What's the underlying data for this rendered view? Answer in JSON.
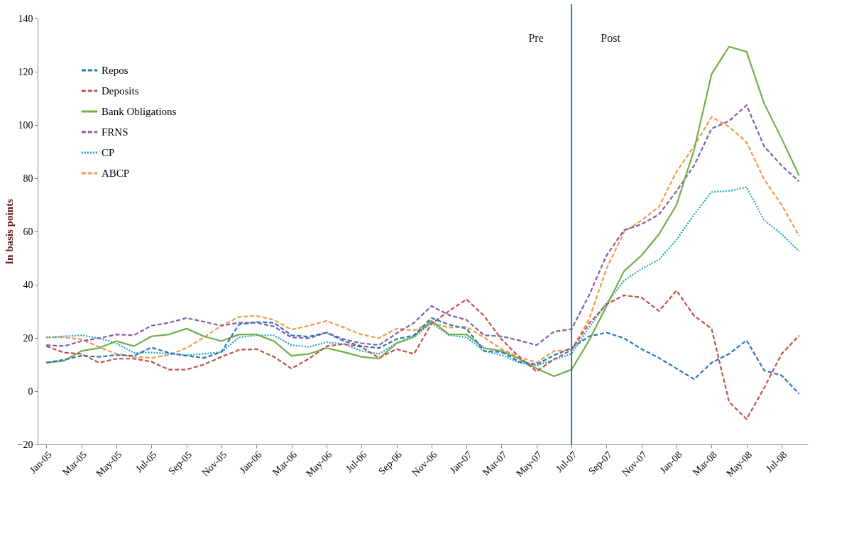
{
  "chart_data": {
    "type": "line",
    "ylabel": "In basis points",
    "categories": [
      "Jan-05",
      null,
      "Mar-05",
      null,
      "May-05",
      null,
      "Jul-05",
      null,
      "Sep-05",
      null,
      "Nov-05",
      null,
      "Jan-06",
      null,
      "Mar-06",
      null,
      "May-06",
      null,
      "Jul-06",
      null,
      "Sep-06",
      null,
      "Nov-06",
      null,
      "Jan-07",
      null,
      "Mar-07",
      null,
      "May-07",
      null,
      "Jul-07",
      null,
      "Sep-07",
      null,
      "Nov-07",
      null,
      "Jan-08",
      null,
      "Mar-08",
      null,
      "May-08",
      null,
      "Jul-08",
      null
    ],
    "series": [
      {
        "name": "Repos",
        "color": "#2e75b6",
        "line_style": "dashed",
        "values": [
          10.7,
          11.8,
          13.3,
          12.9,
          13.6,
          13.3,
          16.4,
          14.4,
          13.3,
          12.5,
          14.7,
          25,
          26,
          25.7,
          21,
          20.5,
          22,
          18.8,
          16.9,
          16.2,
          19.5,
          21,
          27.5,
          25,
          23.5,
          15.1,
          14.7,
          11.1,
          10,
          13.5,
          16.2,
          20.6,
          22,
          19.9,
          15.8,
          12.5,
          8.5,
          4.5,
          10.7,
          14,
          19.1,
          7.8,
          5.9,
          -1
        ]
      },
      {
        "name": "Deposits",
        "color": "#c0504d",
        "line_style": "dashed",
        "values": [
          16.9,
          14.5,
          14,
          10.7,
          12.2,
          12.2,
          11.1,
          8.1,
          8.1,
          10,
          12.9,
          15.5,
          15.8,
          12.9,
          8.5,
          12.2,
          16.9,
          17.7,
          16.6,
          12.5,
          15.8,
          14,
          25.3,
          30.1,
          34.5,
          28.3,
          19.5,
          12.9,
          7.4,
          12,
          15.5,
          25.4,
          32.7,
          36,
          35.2,
          30.1,
          37.8,
          28.3,
          23.5,
          -4,
          -10.5,
          1.2,
          14,
          20.9
        ]
      },
      {
        "name": "Bank Obligations",
        "color": "#70ad47",
        "line_style": "solid",
        "values": [
          10.7,
          11.4,
          15.1,
          16.2,
          18.8,
          16.9,
          20.6,
          21.3,
          23.5,
          20.6,
          18.8,
          21.3,
          21.3,
          18.8,
          13.3,
          14,
          16.2,
          14.7,
          12.9,
          12.2,
          18,
          20.6,
          26.4,
          21.3,
          21.3,
          16.2,
          15.1,
          12.2,
          8.5,
          5.6,
          8.1,
          19,
          32,
          45.1,
          51,
          59,
          70,
          90.6,
          119.1,
          129.4,
          127.5,
          108.1,
          94.9,
          81
        ]
      },
      {
        "name": "FRNS",
        "color": "#7f5fa8",
        "line_style": "dashed",
        "values": [
          17.3,
          16.9,
          18.8,
          19.9,
          21.3,
          21,
          24.6,
          25.7,
          27.5,
          26.1,
          24.6,
          25.7,
          25.7,
          24.3,
          20.2,
          19.9,
          22,
          19.5,
          18,
          17.3,
          21.7,
          25.7,
          32,
          28.6,
          26.8,
          21,
          20.6,
          19.1,
          17.3,
          22.4,
          23.3,
          36,
          51,
          60.5,
          62.7,
          66.4,
          75.2,
          84.7,
          98.6,
          101.5,
          107.4,
          92,
          84.7,
          78.8
        ]
      },
      {
        "name": "CP",
        "color": "#17a2c4",
        "line_style": "dotted",
        "values": [
          20.2,
          20.6,
          21,
          19.9,
          18,
          14.4,
          14.5,
          14,
          13.6,
          14,
          14.7,
          20.2,
          21,
          21,
          17.3,
          16.6,
          18.4,
          17.7,
          15.1,
          14,
          18,
          20.2,
          25.7,
          21,
          20.2,
          15.1,
          13.6,
          10.7,
          9.6,
          11.8,
          14,
          23.9,
          33,
          41.5,
          45.9,
          49.5,
          56.9,
          66.4,
          74.8,
          75.2,
          76.6,
          64.2,
          59,
          52.5
        ]
      },
      {
        "name": "ABCP",
        "color": "#f79646",
        "line_style": "dashed",
        "values": [
          20.2,
          20.2,
          19.5,
          16.6,
          14,
          12.9,
          12.5,
          13.6,
          16.2,
          20.2,
          24.6,
          27.9,
          28.3,
          26.8,
          23.1,
          24.6,
          26.4,
          23.9,
          21.3,
          19.9,
          23.5,
          22.8,
          25.7,
          23.9,
          24.2,
          20.2,
          15.8,
          12.9,
          10.7,
          15.1,
          15.5,
          27,
          46,
          59.8,
          64.2,
          69.3,
          82.5,
          92,
          103,
          99.3,
          93.5,
          79.6,
          70,
          58.3
        ]
      }
    ],
    "ylim": [
      -20,
      140
    ],
    "yticks": [
      -20,
      0,
      20,
      40,
      60,
      80,
      100,
      120,
      140
    ],
    "ref_lines": [
      {
        "axis": "x",
        "value": "Jul-07",
        "color": "#2e75b6"
      }
    ],
    "annotations": [
      "Pre",
      "Post"
    ],
    "legend": "top left",
    "grid": false
  }
}
